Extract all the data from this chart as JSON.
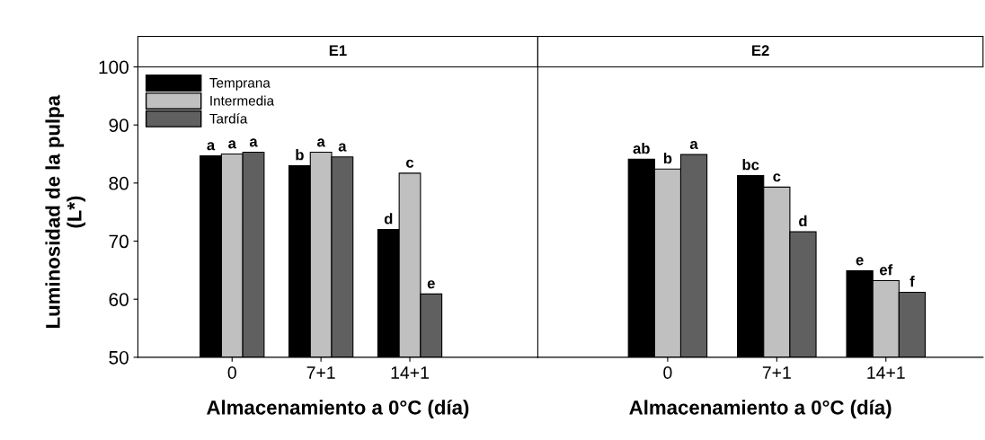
{
  "chart_data": [
    {
      "type": "bar",
      "title": "E1",
      "xlabel": "Almacenamiento a 0°C (día)",
      "ylabel": "Luminosidad de la pulpa\n(L*)",
      "categories": [
        "0",
        "7+1",
        "14+1"
      ],
      "ylim": [
        50,
        100
      ],
      "yticks": [
        50,
        60,
        70,
        80,
        90,
        100
      ],
      "grid": false,
      "legend": "top left",
      "series": [
        {
          "name": "Temprana",
          "color": "#000000",
          "values": [
            84.7,
            83.0,
            72.0
          ],
          "value_labels": [
            "a",
            "b",
            "d"
          ]
        },
        {
          "name": "Intermedia",
          "color": "#c0c0c0",
          "values": [
            85.0,
            85.3,
            81.7
          ],
          "value_labels": [
            "a",
            "a",
            "c"
          ]
        },
        {
          "name": "Tardía",
          "color": "#606060",
          "values": [
            85.3,
            84.5,
            60.9
          ],
          "value_labels": [
            "a",
            "a",
            "e"
          ]
        }
      ]
    },
    {
      "type": "bar",
      "title": "E2",
      "xlabel": "Almacenamiento a 0°C (día)",
      "categories": [
        "0",
        "7+1",
        "14+1"
      ],
      "ylim": [
        50,
        100
      ],
      "tick_labels": "x",
      "grid": false,
      "series": [
        {
          "color": "#000000",
          "values": [
            84.1,
            81.3,
            64.9
          ],
          "value_labels": [
            "ab",
            "bc",
            "e"
          ]
        },
        {
          "color": "#c0c0c0",
          "values": [
            82.4,
            79.3,
            63.2
          ],
          "value_labels": [
            "b",
            "c",
            "ef"
          ]
        },
        {
          "color": "#606060",
          "values": [
            84.9,
            71.6,
            61.2
          ],
          "value_labels": [
            "a",
            "d",
            "f"
          ]
        }
      ]
    }
  ]
}
